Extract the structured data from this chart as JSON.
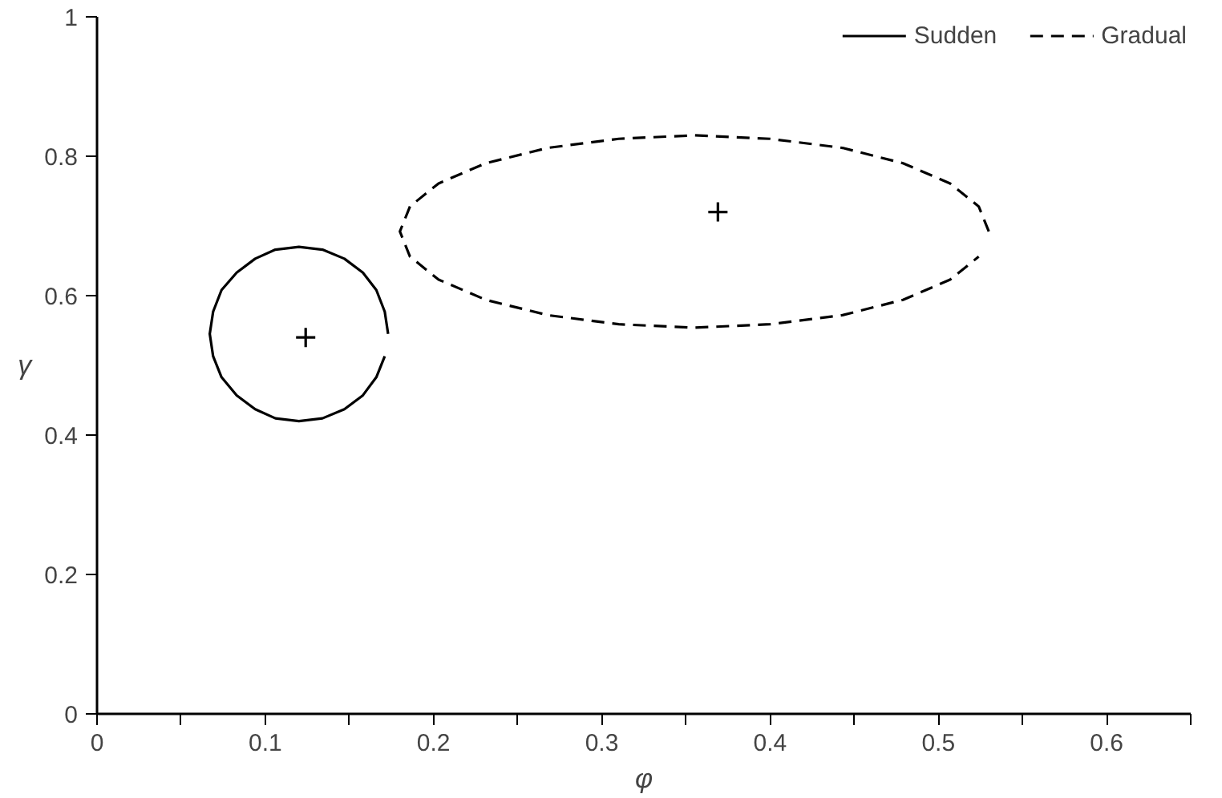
{
  "chart_data": {
    "type": "line",
    "xlabel": "φ",
    "ylabel": "γ",
    "xlim": [
      0,
      0.65
    ],
    "ylim": [
      0,
      1
    ],
    "xticks": [
      0,
      {
        "value": 0.05,
        "label": null
      },
      0.1,
      {
        "value": 0.15,
        "label": null
      },
      0.2,
      {
        "value": 0.25,
        "label": null
      },
      0.3,
      {
        "value": 0.35,
        "label": null
      },
      0.4,
      {
        "value": 0.45,
        "label": null
      },
      0.5,
      {
        "value": 0.55,
        "label": null
      },
      0.6,
      {
        "value": 0.65,
        "label": null
      }
    ],
    "yticks": [
      0,
      0.2,
      0.4,
      0.6,
      0.8,
      1
    ],
    "grid": false,
    "legend": "top right",
    "marker": "none",
    "series": [
      {
        "name": "Sudden",
        "line_style": "solid",
        "color": "#000000",
        "x": [
          0.173,
          0.171,
          0.166,
          0.158,
          0.147,
          0.134,
          0.12,
          0.106,
          0.094,
          0.083,
          0.074,
          0.069,
          0.067,
          0.069,
          0.074,
          0.083,
          0.094,
          0.106,
          0.12,
          0.134,
          0.147,
          0.158,
          0.166,
          0.171
        ],
        "values": [
          0.545,
          0.577,
          0.608,
          0.633,
          0.653,
          0.666,
          0.67,
          0.666,
          0.653,
          0.633,
          0.608,
          0.577,
          0.545,
          0.513,
          0.483,
          0.457,
          0.437,
          0.424,
          0.42,
          0.424,
          0.437,
          0.457,
          0.483,
          0.513
        ]
      },
      {
        "name": "Gradual",
        "line_style": "dashed",
        "color": "#000000",
        "x": [
          0.53,
          0.524,
          0.507,
          0.479,
          0.443,
          0.4,
          0.355,
          0.31,
          0.268,
          0.231,
          0.203,
          0.186,
          0.18,
          0.186,
          0.203,
          0.231,
          0.268,
          0.31,
          0.355,
          0.4,
          0.443,
          0.479,
          0.507,
          0.524
        ],
        "values": [
          0.692,
          0.728,
          0.761,
          0.79,
          0.812,
          0.825,
          0.83,
          0.825,
          0.812,
          0.79,
          0.761,
          0.728,
          0.692,
          0.656,
          0.623,
          0.594,
          0.572,
          0.559,
          0.554,
          0.559,
          0.572,
          0.594,
          0.623,
          0.656
        ]
      },
      {
        "type": "scatter",
        "marker": "cross",
        "color": "#000000",
        "x": [
          0.124
        ],
        "values": [
          0.54
        ]
      },
      {
        "type": "scatter",
        "marker": "cross",
        "color": "#000000",
        "x": [
          0.369
        ],
        "values": [
          0.72
        ]
      }
    ]
  }
}
